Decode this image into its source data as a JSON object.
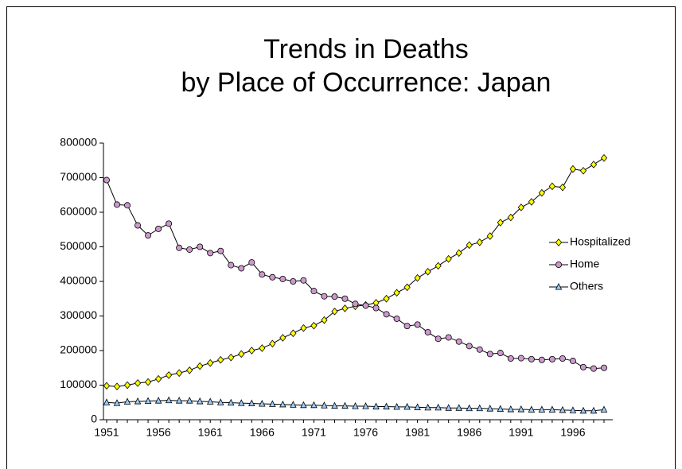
{
  "chart_data": {
    "type": "line",
    "title": [
      "Trends in Deaths",
      "by Place of Occurrence: Japan"
    ],
    "categories": [
      "1951",
      null,
      null,
      null,
      null,
      "1956",
      null,
      null,
      null,
      null,
      "1961",
      null,
      null,
      null,
      null,
      "1966",
      null,
      null,
      null,
      null,
      "1971",
      null,
      null,
      null,
      null,
      "1976",
      null,
      null,
      null,
      null,
      "1981",
      null,
      null,
      null,
      null,
      "1986",
      null,
      null,
      null,
      null,
      "1991",
      null,
      null,
      null,
      null,
      "1996",
      null,
      null,
      null
    ],
    "series": [
      {
        "name": "Hospitalized",
        "color": "#ffff00",
        "marker": "diamond",
        "values": [
          98000,
          96000,
          100000,
          106000,
          109000,
          118000,
          129000,
          135000,
          143000,
          155000,
          164000,
          173000,
          180000,
          190000,
          200000,
          207000,
          220000,
          237000,
          250000,
          265000,
          272000,
          288000,
          313000,
          322000,
          328000,
          332000,
          338000,
          350000,
          367000,
          383000,
          410000,
          428000,
          445000,
          465000,
          482000,
          505000,
          513000,
          531000,
          570000,
          585000,
          614000,
          630000,
          656000,
          675000,
          672000,
          725000,
          720000,
          738000,
          757000
        ]
      },
      {
        "name": "Home",
        "color": "#cc99cc",
        "marker": "circle",
        "values": [
          693000,
          622000,
          620000,
          562000,
          533000,
          552000,
          567000,
          497000,
          492000,
          500000,
          482000,
          488000,
          447000,
          438000,
          455000,
          420000,
          412000,
          407000,
          400000,
          403000,
          372000,
          357000,
          356000,
          350000,
          335000,
          330000,
          323000,
          305000,
          292000,
          271000,
          275000,
          253000,
          234000,
          238000,
          226000,
          213000,
          203000,
          190000,
          193000,
          177000,
          178000,
          175000,
          173000,
          175000,
          177000,
          170000,
          152000,
          148000,
          150000
        ]
      },
      {
        "name": "Others",
        "color": "#99ccff",
        "marker": "triangle",
        "values": [
          50000,
          48000,
          52000,
          53000,
          54000,
          55000,
          56000,
          55000,
          55000,
          53000,
          52000,
          50000,
          49000,
          48000,
          47000,
          46000,
          45000,
          44000,
          43000,
          42000,
          42000,
          41000,
          40000,
          40000,
          39000,
          39000,
          38000,
          38000,
          37000,
          37000,
          36000,
          35000,
          35000,
          34000,
          34000,
          33000,
          33000,
          32000,
          31000,
          30000,
          30000,
          29000,
          29000,
          29000,
          28000,
          27000,
          26000,
          26000,
          29000
        ]
      }
    ],
    "ylim": [
      0,
      800000
    ],
    "yticks": [
      0,
      100000,
      200000,
      300000,
      400000,
      500000,
      600000,
      700000,
      800000
    ],
    "grid": false,
    "legend": "right"
  }
}
